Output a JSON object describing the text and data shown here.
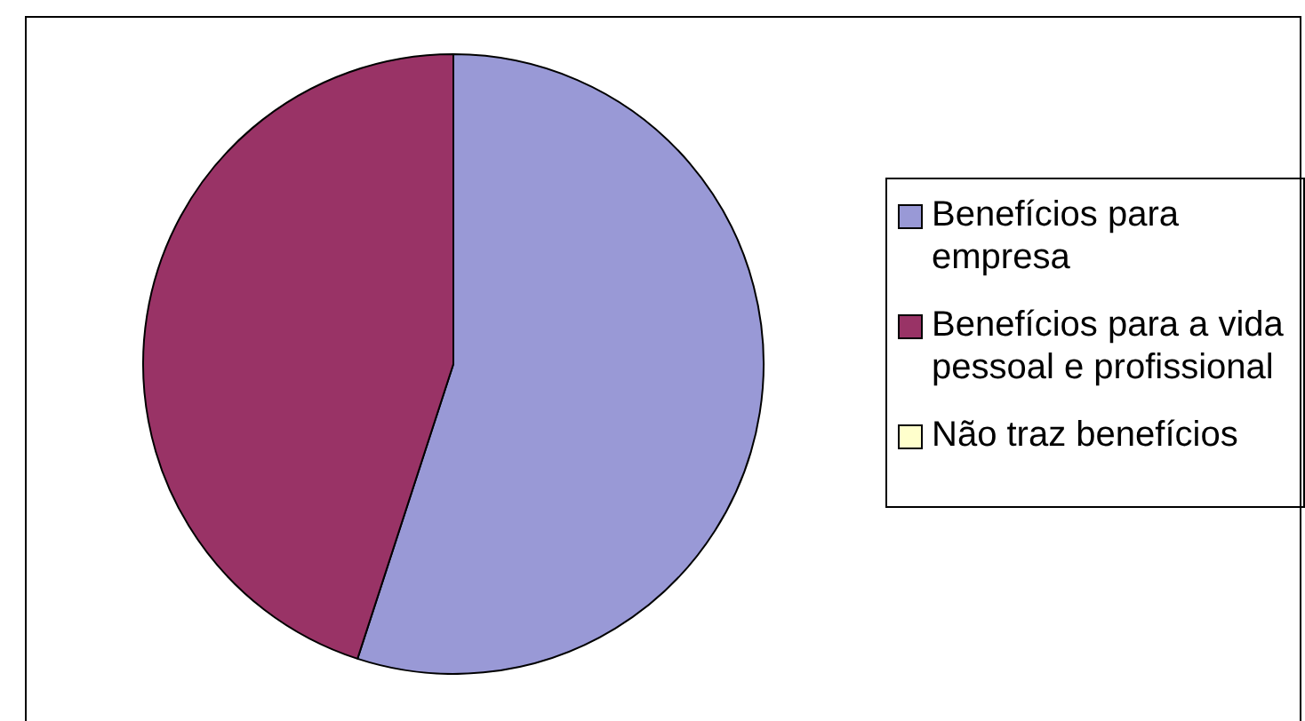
{
  "chart_data": {
    "type": "pie",
    "categories": [
      "Benefícios para empresa",
      "Benefícios para a vida pessoal e profissional",
      "Não traz benefícios"
    ],
    "values": [
      55,
      45,
      0
    ],
    "colors": [
      "#9999d6",
      "#993366",
      "#ffffcc"
    ],
    "legend": "right"
  }
}
